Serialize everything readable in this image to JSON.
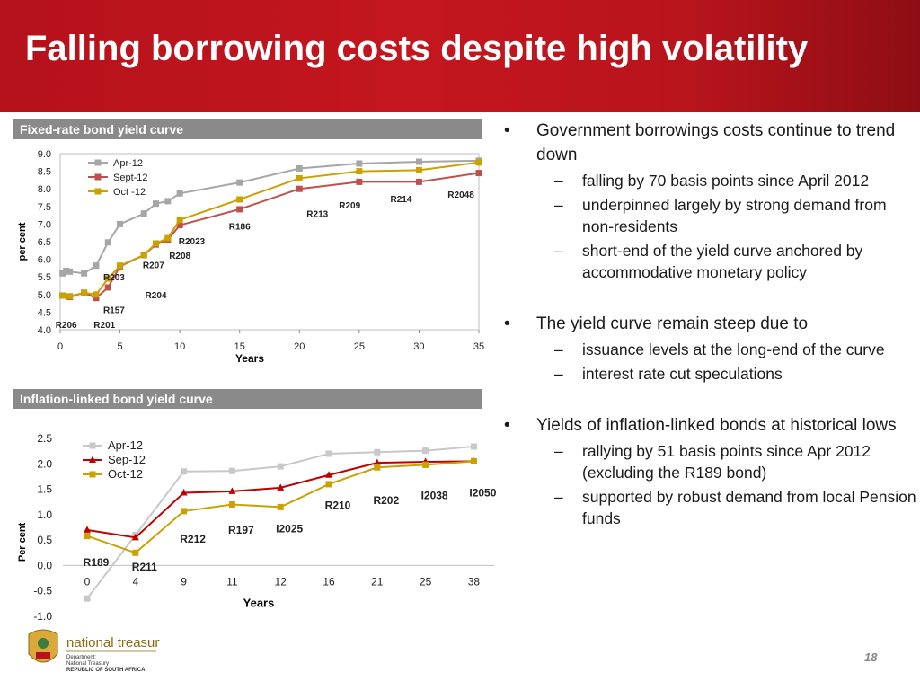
{
  "slide": {
    "title": "Falling borrowing costs despite high volatility",
    "page_number": "18"
  },
  "logo": {
    "name": "national treasury",
    "line1": "Department:",
    "line2": "National Treasury",
    "line3": "REPUBLIC OF SOUTH AFRICA"
  },
  "bullets": [
    {
      "text": "Government borrowings costs continue to trend down",
      "subs": [
        "falling by 70 basis points since April 2012",
        "underpinned largely by strong demand from non-residents",
        "short-end of the yield curve anchored by accommodative  monetary policy"
      ]
    },
    {
      "text": "The yield curve remain steep due to",
      "subs": [
        "issuance levels at the long-end of the curve",
        "interest rate cut speculations"
      ]
    },
    {
      "text": "Yields of inflation-linked bonds at historical lows",
      "subs": [
        "rallying by 51 basis points since Apr 2012 (excluding the R189 bond)",
        "supported by robust demand from local Pension funds"
      ]
    }
  ],
  "chart_data": [
    {
      "type": "line",
      "panel_title": "Fixed-rate bond yield curve",
      "xlabel": "Years",
      "ylabel": "per cent",
      "xlim": [
        0,
        35
      ],
      "ylim": [
        4.0,
        9.0
      ],
      "xticks": [
        0,
        5,
        10,
        15,
        20,
        25,
        30,
        35
      ],
      "yticks": [
        4.0,
        4.5,
        5.0,
        5.5,
        6.0,
        6.5,
        7.0,
        7.5,
        8.0,
        8.5,
        9.0
      ],
      "legend_position": "top-left",
      "series": [
        {
          "name": "Apr-12",
          "color": "#a6a6a6",
          "marker": "square",
          "x": [
            0.2,
            0.5,
            0.8,
            2.0,
            3.0,
            4.0,
            5.0,
            7.0,
            8.0,
            9.0,
            10.0,
            15.0,
            20.0,
            25.0,
            30.0,
            35.0
          ],
          "y": [
            5.6,
            5.67,
            5.65,
            5.6,
            5.82,
            6.48,
            7.0,
            7.3,
            7.58,
            7.65,
            7.87,
            8.18,
            8.58,
            8.72,
            8.77,
            8.8
          ]
        },
        {
          "name": "Sept-12",
          "color": "#c0504d",
          "marker": "square",
          "x": [
            0.2,
            0.8,
            2.0,
            3.0,
            4.0,
            5.0,
            7.0,
            8.0,
            9.0,
            10.0,
            15.0,
            20.0,
            25.0,
            30.0,
            35.0
          ],
          "y": [
            4.97,
            4.93,
            5.05,
            4.9,
            5.2,
            5.8,
            6.12,
            6.42,
            6.55,
            6.97,
            7.42,
            8.0,
            8.2,
            8.2,
            8.45
          ]
        },
        {
          "name": "Oct -12",
          "color": "#c9a200",
          "marker": "square",
          "x": [
            0.2,
            0.8,
            2.0,
            3.0,
            4.0,
            5.0,
            7.0,
            8.0,
            9.0,
            10.0,
            15.0,
            20.0,
            25.0,
            30.0,
            35.0
          ],
          "y": [
            4.97,
            4.95,
            5.05,
            5.0,
            5.45,
            5.82,
            6.12,
            6.45,
            6.6,
            7.12,
            7.7,
            8.3,
            8.5,
            8.53,
            8.75
          ]
        }
      ],
      "annotations": [
        {
          "text": "R206",
          "x": 0.5,
          "y": 4.15
        },
        {
          "text": "R201",
          "x": 3.7,
          "y": 4.15
        },
        {
          "text": "R157",
          "x": 4.5,
          "y": 4.58
        },
        {
          "text": "R204",
          "x": 8.0,
          "y": 5.0
        },
        {
          "text": "R203",
          "x": 4.5,
          "y": 5.5
        },
        {
          "text": "R207",
          "x": 7.8,
          "y": 5.85
        },
        {
          "text": "R208",
          "x": 10.0,
          "y": 6.12
        },
        {
          "text": "R2023",
          "x": 11.0,
          "y": 6.52
        },
        {
          "text": "R186",
          "x": 15.0,
          "y": 6.95
        },
        {
          "text": "R213",
          "x": 21.5,
          "y": 7.3
        },
        {
          "text": "R209",
          "x": 24.2,
          "y": 7.55
        },
        {
          "text": "R214",
          "x": 28.5,
          "y": 7.72
        },
        {
          "text": "R2048",
          "x": 33.5,
          "y": 7.85
        }
      ]
    },
    {
      "type": "line",
      "panel_title": "Inflation-linked bond yield curve",
      "xlabel": "Years",
      "ylabel": "Per cent",
      "categories": [
        "0",
        "4",
        "9",
        "11",
        "12",
        "16",
        "21",
        "25",
        "38"
      ],
      "ylim": [
        -1.0,
        2.5
      ],
      "yticks": [
        -1.0,
        -0.5,
        0.0,
        0.5,
        1.0,
        1.5,
        2.0,
        2.5
      ],
      "legend_position": "top-left",
      "series": [
        {
          "name": "Apr-12",
          "color": "#c8c8c8",
          "marker": "square",
          "values": [
            -0.65,
            0.6,
            1.85,
            1.86,
            1.95,
            2.2,
            2.23,
            2.26,
            2.34
          ]
        },
        {
          "name": "Sep-12",
          "color": "#c00000",
          "marker": "triangle",
          "values": [
            0.7,
            0.55,
            1.43,
            1.46,
            1.53,
            1.78,
            2.02,
            2.04,
            2.05
          ]
        },
        {
          "name": "Oct-12",
          "color": "#c9a200",
          "marker": "square",
          "values": [
            0.58,
            0.25,
            1.07,
            1.2,
            1.15,
            1.6,
            1.93,
            1.98,
            2.05
          ]
        }
      ],
      "annotations": [
        {
          "text": "R189",
          "category": 0,
          "y": 0.06
        },
        {
          "text": "R211",
          "category": 1,
          "y": -0.03
        },
        {
          "text": "R212",
          "category": 2,
          "y": 0.52
        },
        {
          "text": "R197",
          "category": 3,
          "y": 0.7
        },
        {
          "text": "I2025",
          "category": 4,
          "y": 0.72
        },
        {
          "text": "R210",
          "category": 5,
          "y": 1.18
        },
        {
          "text": "R202",
          "category": 6,
          "y": 1.28
        },
        {
          "text": "I2038",
          "category": 7,
          "y": 1.38
        },
        {
          "text": "I2050",
          "category": 8,
          "y": 1.43
        }
      ]
    }
  ]
}
